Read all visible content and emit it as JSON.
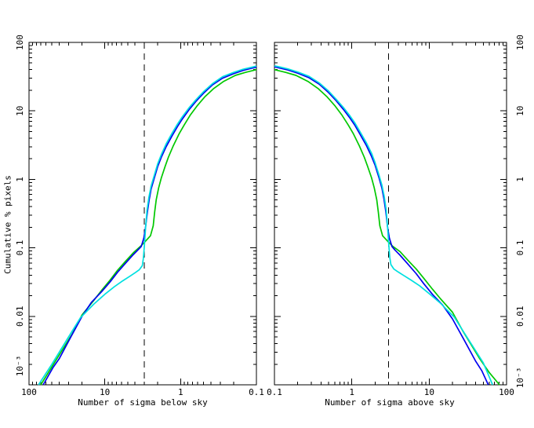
{
  "figure": {
    "background_color": "#ffffff",
    "y_axis_title": "Cumulative % pixels",
    "y_tick_labels": [
      "100",
      "10",
      "1",
      "0.1",
      "0.01",
      "10⁻³"
    ],
    "y_tick_values": [
      100,
      10,
      1,
      0.1,
      0.01,
      0.001
    ],
    "colors": {
      "blue": "#0000f0",
      "cyan": "#00e0e0",
      "green": "#00c800",
      "axis": "#000000",
      "threshold": "#000000"
    }
  },
  "chart_data": [
    {
      "type": "line",
      "panel": "left",
      "title": "",
      "xlabel": "Number of sigma below sky",
      "ylabel": "Cumulative % pixels",
      "xscale": "log",
      "yscale": "log",
      "xlim": [
        100,
        0.1
      ],
      "ylim": [
        0.001,
        100
      ],
      "x_tick_labels": [
        "100",
        "10",
        "1",
        "0.1"
      ],
      "x_tick_values": [
        100,
        10,
        1,
        0.1
      ],
      "vline_sigma": 3,
      "vline_style": "dashed",
      "legend": "none",
      "series": [
        {
          "name": "green",
          "color": "#00c800",
          "points": [
            [
              70,
              0.001
            ],
            [
              45,
              0.0022
            ],
            [
              27,
              0.0055
            ],
            [
              20,
              0.0105
            ],
            [
              14,
              0.017
            ],
            [
              11,
              0.024
            ],
            [
              8.5,
              0.034
            ],
            [
              6.8,
              0.047
            ],
            [
              5.3,
              0.064
            ],
            [
              4.2,
              0.085
            ],
            [
              3.4,
              0.105
            ],
            [
              2.9,
              0.125
            ],
            [
              2.5,
              0.15
            ],
            [
              2.3,
              0.21
            ],
            [
              2.2,
              0.33
            ],
            [
              2.1,
              0.5
            ],
            [
              1.95,
              0.75
            ],
            [
              1.8,
              1.05
            ],
            [
              1.6,
              1.55
            ],
            [
              1.45,
              2.1
            ],
            [
              1.25,
              3.1
            ],
            [
              1.05,
              4.6
            ],
            [
              0.9,
              6.2
            ],
            [
              0.75,
              8.6
            ],
            [
              0.6,
              12
            ],
            [
              0.48,
              16
            ],
            [
              0.37,
              21
            ],
            [
              0.27,
              27
            ],
            [
              0.19,
              33
            ],
            [
              0.14,
              36.5
            ],
            [
              0.11,
              39
            ],
            [
              0.1,
              40
            ]
          ]
        },
        {
          "name": "blue",
          "color": "#0000f0",
          "points": [
            [
              65,
              0.001
            ],
            [
              48,
              0.0018
            ],
            [
              40,
              0.0024
            ],
            [
              28,
              0.005
            ],
            [
              20,
              0.01
            ],
            [
              15,
              0.016
            ],
            [
              11,
              0.023
            ],
            [
              8.5,
              0.032
            ],
            [
              6.8,
              0.044
            ],
            [
              5.3,
              0.06
            ],
            [
              4.2,
              0.08
            ],
            [
              3.6,
              0.095
            ],
            [
              3.3,
              0.105
            ],
            [
              3.05,
              0.14
            ],
            [
              2.9,
              0.2
            ],
            [
              2.75,
              0.33
            ],
            [
              2.6,
              0.5
            ],
            [
              2.45,
              0.72
            ],
            [
              2.25,
              1.0
            ],
            [
              2.0,
              1.55
            ],
            [
              1.8,
              2.1
            ],
            [
              1.55,
              3.0
            ],
            [
              1.3,
              4.3
            ],
            [
              1.1,
              5.9
            ],
            [
              0.95,
              7.6
            ],
            [
              0.78,
              10.3
            ],
            [
              0.62,
              14
            ],
            [
              0.5,
              18
            ],
            [
              0.38,
              24
            ],
            [
              0.28,
              30
            ],
            [
              0.2,
              35
            ],
            [
              0.15,
              39
            ],
            [
              0.12,
              41.5
            ],
            [
              0.1,
              43.5
            ]
          ]
        },
        {
          "name": "cyan",
          "color": "#00e0e0",
          "points": [
            [
              75,
              0.001
            ],
            [
              50,
              0.002
            ],
            [
              30,
              0.005
            ],
            [
              21,
              0.0095
            ],
            [
              14,
              0.015
            ],
            [
              10,
              0.021
            ],
            [
              7.5,
              0.027
            ],
            [
              5.8,
              0.033
            ],
            [
              4.6,
              0.039
            ],
            [
              3.9,
              0.044
            ],
            [
              3.5,
              0.048
            ],
            [
              3.2,
              0.055
            ],
            [
              3.1,
              0.07
            ],
            [
              3.0,
              0.11
            ],
            [
              2.9,
              0.19
            ],
            [
              2.78,
              0.35
            ],
            [
              2.62,
              0.55
            ],
            [
              2.45,
              0.8
            ],
            [
              2.25,
              1.1
            ],
            [
              2.0,
              1.7
            ],
            [
              1.8,
              2.3
            ],
            [
              1.55,
              3.3
            ],
            [
              1.3,
              4.7
            ],
            [
              1.1,
              6.4
            ],
            [
              0.95,
              8.2
            ],
            [
              0.78,
              11
            ],
            [
              0.62,
              14.8
            ],
            [
              0.5,
              19
            ],
            [
              0.38,
              25
            ],
            [
              0.28,
              31.5
            ],
            [
              0.2,
              36.5
            ],
            [
              0.15,
              40.5
            ],
            [
              0.12,
              43
            ],
            [
              0.1,
              45
            ]
          ]
        }
      ]
    },
    {
      "type": "line",
      "panel": "right",
      "title": "",
      "xlabel": "Number of sigma above sky",
      "ylabel": "Cumulative % pixels",
      "xscale": "log",
      "yscale": "log",
      "xlim": [
        0.1,
        100
      ],
      "ylim": [
        0.001,
        100
      ],
      "x_tick_labels": [
        "0.1",
        "1",
        "10",
        "100"
      ],
      "x_tick_values": [
        0.1,
        1,
        10,
        100
      ],
      "vline_sigma": 3,
      "vline_style": "dashed",
      "legend": "none",
      "series": [
        {
          "name": "green",
          "color": "#00c800",
          "points": [
            [
              0.1,
              40
            ],
            [
              0.11,
              39
            ],
            [
              0.14,
              36.5
            ],
            [
              0.19,
              33
            ],
            [
              0.27,
              27
            ],
            [
              0.37,
              21
            ],
            [
              0.48,
              16
            ],
            [
              0.6,
              12
            ],
            [
              0.75,
              8.6
            ],
            [
              0.9,
              6.2
            ],
            [
              1.05,
              4.6
            ],
            [
              1.25,
              3.1
            ],
            [
              1.45,
              2.1
            ],
            [
              1.6,
              1.55
            ],
            [
              1.8,
              1.05
            ],
            [
              1.95,
              0.75
            ],
            [
              2.1,
              0.5
            ],
            [
              2.2,
              0.33
            ],
            [
              2.3,
              0.21
            ],
            [
              2.5,
              0.15
            ],
            [
              2.9,
              0.125
            ],
            [
              3.4,
              0.105
            ],
            [
              4.2,
              0.088
            ],
            [
              5.3,
              0.066
            ],
            [
              6.8,
              0.049
            ],
            [
              8.5,
              0.036
            ],
            [
              11,
              0.025
            ],
            [
              14,
              0.018
            ],
            [
              20,
              0.0115
            ],
            [
              27,
              0.0062
            ],
            [
              45,
              0.0024
            ],
            [
              60,
              0.0015
            ],
            [
              81,
              0.001
            ]
          ]
        },
        {
          "name": "blue",
          "color": "#0000f0",
          "points": [
            [
              0.1,
              44
            ],
            [
              0.12,
              42
            ],
            [
              0.15,
              39.5
            ],
            [
              0.2,
              35.5
            ],
            [
              0.28,
              30.5
            ],
            [
              0.38,
              24.5
            ],
            [
              0.5,
              18.5
            ],
            [
              0.62,
              14.3
            ],
            [
              0.78,
              10.5
            ],
            [
              0.95,
              7.8
            ],
            [
              1.1,
              6.1
            ],
            [
              1.3,
              4.4
            ],
            [
              1.55,
              3.1
            ],
            [
              1.8,
              2.15
            ],
            [
              2.0,
              1.6
            ],
            [
              2.25,
              1.05
            ],
            [
              2.45,
              0.74
            ],
            [
              2.6,
              0.52
            ],
            [
              2.75,
              0.34
            ],
            [
              2.9,
              0.2
            ],
            [
              3.05,
              0.14
            ],
            [
              3.3,
              0.105
            ],
            [
              3.6,
              0.093
            ],
            [
              4.2,
              0.078
            ],
            [
              5.3,
              0.058
            ],
            [
              6.8,
              0.042
            ],
            [
              8.5,
              0.03
            ],
            [
              11,
              0.021
            ],
            [
              15,
              0.0145
            ],
            [
              20,
              0.0092
            ],
            [
              28,
              0.0046
            ],
            [
              40,
              0.0022
            ],
            [
              48,
              0.0016
            ],
            [
              58,
              0.001
            ]
          ]
        },
        {
          "name": "cyan",
          "color": "#00e0e0",
          "points": [
            [
              0.1,
              45.5
            ],
            [
              0.12,
              43.5
            ],
            [
              0.15,
              41
            ],
            [
              0.2,
              37
            ],
            [
              0.28,
              32
            ],
            [
              0.38,
              25.5
            ],
            [
              0.5,
              19.5
            ],
            [
              0.62,
              15
            ],
            [
              0.78,
              11.2
            ],
            [
              0.95,
              8.4
            ],
            [
              1.1,
              6.6
            ],
            [
              1.3,
              4.8
            ],
            [
              1.55,
              3.4
            ],
            [
              1.8,
              2.4
            ],
            [
              2.0,
              1.75
            ],
            [
              2.25,
              1.15
            ],
            [
              2.45,
              0.82
            ],
            [
              2.62,
              0.57
            ],
            [
              2.78,
              0.36
            ],
            [
              2.9,
              0.195
            ],
            [
              3.0,
              0.115
            ],
            [
              3.1,
              0.072
            ],
            [
              3.2,
              0.057
            ],
            [
              3.5,
              0.049
            ],
            [
              3.9,
              0.045
            ],
            [
              4.6,
              0.04
            ],
            [
              5.8,
              0.034
            ],
            [
              7.5,
              0.028
            ],
            [
              10,
              0.0215
            ],
            [
              14,
              0.0155
            ],
            [
              21,
              0.0098
            ],
            [
              30,
              0.0052
            ],
            [
              50,
              0.0021
            ],
            [
              66,
              0.001
            ]
          ]
        }
      ]
    }
  ]
}
